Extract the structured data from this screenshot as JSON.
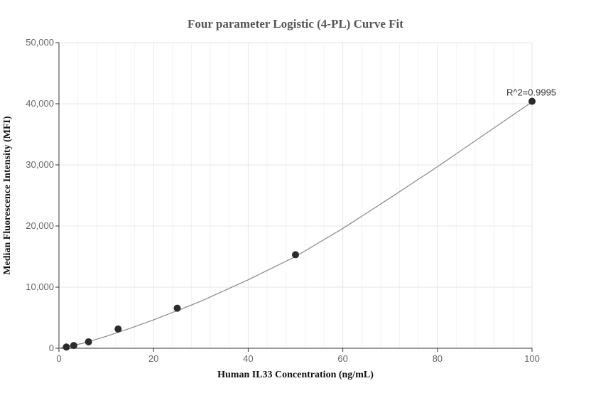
{
  "chart_data": {
    "type": "scatter",
    "title": "Four parameter Logistic (4-PL) Curve Fit",
    "xlabel": "Human IL33 Concentration (ng/mL)",
    "ylabel": "Median Fluorescence Intensity (MFI)",
    "xlim": [
      0,
      100
    ],
    "ylim": [
      0,
      50000
    ],
    "x_ticks": [
      0,
      20,
      40,
      60,
      80,
      100
    ],
    "x_tick_labels": [
      "0",
      "20",
      "40",
      "60",
      "80",
      "100"
    ],
    "y_ticks": [
      0,
      10000,
      20000,
      30000,
      40000,
      50000
    ],
    "y_tick_labels": [
      "0",
      "10,000",
      "20,000",
      "30,000",
      "40,000",
      "50,000"
    ],
    "grid": true,
    "series": [
      {
        "points": [
          {
            "x": 1.5625,
            "y": 200
          },
          {
            "x": 3.125,
            "y": 450
          },
          {
            "x": 6.25,
            "y": 1050
          },
          {
            "x": 12.5,
            "y": 3150
          },
          {
            "x": 25,
            "y": 6550
          },
          {
            "x": 50,
            "y": 15300
          },
          {
            "x": 100,
            "y": 40400
          }
        ]
      }
    ],
    "fit_curve": {
      "model": "4PL",
      "x": [
        0,
        5,
        10,
        15,
        20,
        25,
        30,
        40,
        50,
        60,
        70,
        80,
        90,
        100
      ],
      "y": [
        0,
        800,
        1950,
        3250,
        4650,
        6150,
        7700,
        11200,
        15000,
        19600,
        24600,
        29700,
        35000,
        40300
      ]
    },
    "annotations": [
      {
        "text": "R^2=0.9995",
        "x": 100,
        "y": 40400
      }
    ]
  }
}
